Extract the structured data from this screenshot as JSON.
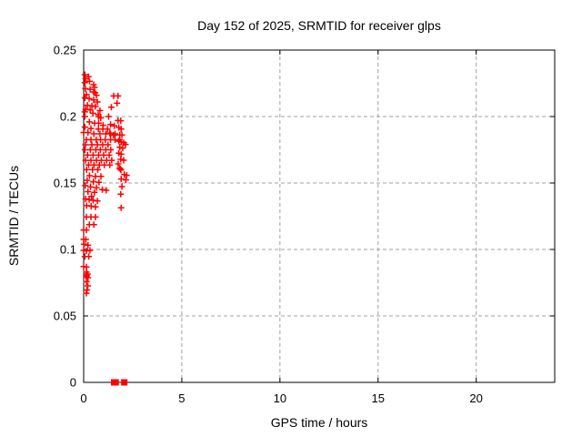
{
  "chart_data": {
    "type": "scatter",
    "title": "Day 152 of 2025, SRMTID for receiver glps",
    "xlabel": "GPS time / hours",
    "ylabel": "SRMTID / TECUs",
    "xlim": [
      0,
      24
    ],
    "ylim": [
      0,
      0.25
    ],
    "xticks": [
      0,
      5,
      10,
      15,
      20
    ],
    "xtick_labels": [
      "0",
      "5",
      "10",
      "15",
      "20"
    ],
    "yticks": [
      0,
      0.05,
      0.1,
      0.15,
      0.2,
      0.25
    ],
    "ytick_labels": [
      "0",
      "0.05",
      "0.1",
      "0.15",
      "0.2",
      "0.25"
    ],
    "grid": true,
    "legend_position": "none",
    "colors": {
      "marker": "#ff0000",
      "grid": "#a0a0a0",
      "border": "#000000",
      "background": "#ffffff"
    },
    "series": [
      {
        "name": "srmtid-values",
        "marker": "plus",
        "points": [
          [
            0.06,
            0.2315
          ],
          [
            0.24,
            0.23
          ],
          [
            0.1,
            0.2285
          ],
          [
            0.3,
            0.2265
          ],
          [
            0.06,
            0.2255
          ],
          [
            0.51,
            0.224
          ],
          [
            0.55,
            0.222
          ],
          [
            0.09,
            0.221
          ],
          [
            0.33,
            0.2205
          ],
          [
            0.51,
            0.2185
          ],
          [
            0.58,
            0.218
          ],
          [
            0.14,
            0.2165
          ],
          [
            0.65,
            0.216
          ],
          [
            1.53,
            0.2155
          ],
          [
            1.75,
            0.2155
          ],
          [
            0.06,
            0.214
          ],
          [
            0.28,
            0.2135
          ],
          [
            0.51,
            0.2125
          ],
          [
            0.7,
            0.211
          ],
          [
            1.7,
            0.21
          ],
          [
            0.19,
            0.2085
          ],
          [
            0.42,
            0.208
          ],
          [
            0.6,
            0.2075
          ],
          [
            1.41,
            0.207
          ],
          [
            0.1,
            0.2055
          ],
          [
            0.33,
            0.205
          ],
          [
            0.83,
            0.2045
          ],
          [
            0.06,
            0.2035
          ],
          [
            0.47,
            0.2025
          ],
          [
            0.74,
            0.2015
          ],
          [
            0.06,
            0.2
          ],
          [
            0.76,
            0.2
          ],
          [
            1.27,
            0.2
          ],
          [
            0.87,
            0.199
          ],
          [
            1.75,
            0.197
          ],
          [
            1.89,
            0.1968
          ],
          [
            0.29,
            0.196
          ],
          [
            0.56,
            0.195
          ],
          [
            0.76,
            0.195
          ],
          [
            0.99,
            0.1934
          ],
          [
            0.06,
            0.192
          ],
          [
            1.79,
            0.1918
          ],
          [
            0.37,
            0.191
          ],
          [
            0.75,
            0.1906
          ],
          [
            0.98,
            0.1906
          ],
          [
            1.21,
            0.1906
          ],
          [
            1.91,
            0.1906
          ],
          [
            1.37,
            0.194
          ],
          [
            1.56,
            0.193
          ],
          [
            0.0,
            0.188
          ],
          [
            0.22,
            0.1879
          ],
          [
            1.33,
            0.1875
          ],
          [
            0.52,
            0.187
          ],
          [
            0.83,
            0.187
          ],
          [
            1.13,
            0.187
          ],
          [
            1.37,
            0.187
          ],
          [
            1.6,
            0.187
          ],
          [
            1.52,
            0.186
          ],
          [
            1.84,
            0.1861
          ],
          [
            1.95,
            0.1861
          ],
          [
            0.14,
            0.1825
          ],
          [
            0.37,
            0.1825
          ],
          [
            0.64,
            0.1825
          ],
          [
            0.86,
            0.1825
          ],
          [
            1.1,
            0.1825
          ],
          [
            1.37,
            0.1825
          ],
          [
            1.6,
            0.1825
          ],
          [
            1.83,
            0.1825
          ],
          [
            1.79,
            0.1815
          ],
          [
            1.91,
            0.1808
          ],
          [
            2.04,
            0.1803
          ],
          [
            0.09,
            0.1788
          ],
          [
            0.42,
            0.1788
          ],
          [
            0.7,
            0.1788
          ],
          [
            0.97,
            0.1788
          ],
          [
            1.24,
            0.1788
          ],
          [
            2.13,
            0.179
          ],
          [
            1.84,
            0.1769
          ],
          [
            1.99,
            0.1762
          ],
          [
            0.06,
            0.175
          ],
          [
            0.34,
            0.175
          ],
          [
            0.62,
            0.175
          ],
          [
            0.85,
            0.175
          ],
          [
            1.13,
            0.175
          ],
          [
            1.38,
            0.175
          ],
          [
            1.79,
            0.1724
          ],
          [
            1.91,
            0.1717
          ],
          [
            0.2,
            0.171
          ],
          [
            0.48,
            0.171
          ],
          [
            0.76,
            0.171
          ],
          [
            1.02,
            0.171
          ],
          [
            1.3,
            0.171
          ],
          [
            0.1,
            0.167
          ],
          [
            0.37,
            0.167
          ],
          [
            0.65,
            0.167
          ],
          [
            0.9,
            0.167
          ],
          [
            1.17,
            0.167
          ],
          [
            1.43,
            0.167
          ],
          [
            1.89,
            0.1678
          ],
          [
            2.04,
            0.1671
          ],
          [
            0.25,
            0.1635
          ],
          [
            0.53,
            0.1635
          ],
          [
            0.8,
            0.1635
          ],
          [
            1.05,
            0.1635
          ],
          [
            1.33,
            0.1635
          ],
          [
            1.76,
            0.1644
          ],
          [
            0.15,
            0.16
          ],
          [
            0.45,
            0.16
          ],
          [
            0.72,
            0.16
          ],
          [
            1.83,
            0.1612
          ],
          [
            1.87,
            0.1605
          ],
          [
            1.9,
            0.1598
          ],
          [
            0.3,
            0.1555
          ],
          [
            0.6,
            0.155
          ],
          [
            0.88,
            0.155
          ],
          [
            2.07,
            0.1564
          ],
          [
            2.19,
            0.1557
          ],
          [
            0.18,
            0.152
          ],
          [
            0.5,
            0.151
          ],
          [
            0.78,
            0.1505
          ],
          [
            1.91,
            0.153
          ],
          [
            2.15,
            0.1523
          ],
          [
            0.08,
            0.148
          ],
          [
            0.35,
            0.147
          ],
          [
            0.65,
            0.1465
          ],
          [
            0.95,
            0.145
          ],
          [
            1.15,
            0.1445
          ],
          [
            1.95,
            0.1473
          ],
          [
            0.22,
            0.1435
          ],
          [
            0.55,
            0.143
          ],
          [
            1.89,
            0.1416
          ],
          [
            0.4,
            0.14
          ],
          [
            0.1,
            0.138
          ],
          [
            0.28,
            0.1375
          ],
          [
            0.48,
            0.137
          ],
          [
            0.7,
            0.1365
          ],
          [
            0.15,
            0.133
          ],
          [
            0.38,
            0.1325
          ],
          [
            0.6,
            0.132
          ],
          [
            1.91,
            0.1313
          ],
          [
            0.14,
            0.1244
          ],
          [
            0.37,
            0.1244
          ],
          [
            0.6,
            0.1244
          ],
          [
            0.29,
            0.1187
          ],
          [
            0.52,
            0.1187
          ],
          [
            0.0,
            0.1146
          ],
          [
            0.14,
            0.1146
          ],
          [
            0.0,
            0.1075
          ],
          [
            0.11,
            0.1075
          ],
          [
            0.02,
            0.1039
          ],
          [
            0.22,
            0.1032
          ],
          [
            0.0,
            0.0993
          ],
          [
            0.14,
            0.099
          ],
          [
            0.32,
            0.0993
          ],
          [
            0.06,
            0.0947
          ],
          [
            0.26,
            0.0947
          ],
          [
            0.0,
            0.0872
          ],
          [
            0.14,
            0.0868
          ],
          [
            0.14,
            0.083
          ],
          [
            0.2,
            0.0815
          ],
          [
            0.16,
            0.0805
          ],
          [
            0.13,
            0.0795
          ],
          [
            0.22,
            0.0788
          ],
          [
            0.14,
            0.0758
          ],
          [
            0.21,
            0.0726
          ],
          [
            0.17,
            0.0695
          ],
          [
            0.14,
            0.067
          ]
        ]
      },
      {
        "name": "flagged-zero-values",
        "marker": "square",
        "points": [
          [
            1.55,
            0
          ],
          [
            1.63,
            0
          ],
          [
            2.07,
            0
          ]
        ]
      }
    ]
  }
}
